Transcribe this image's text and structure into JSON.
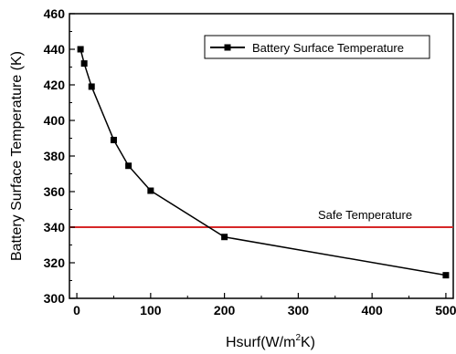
{
  "chart_data": {
    "type": "line",
    "title": "",
    "xlabel": {
      "prefix": "Hsurf(W/m",
      "sup": "2",
      "suffix": "K)"
    },
    "ylabel": "Battery Surface Temperature (K)",
    "xlim": [
      -10,
      510
    ],
    "ylim": [
      300,
      460
    ],
    "xticks": [
      0,
      100,
      200,
      300,
      400,
      500
    ],
    "yticks": [
      300,
      320,
      340,
      360,
      380,
      400,
      420,
      440,
      460
    ],
    "grid": false,
    "legend_position": "top-right",
    "series": [
      {
        "name": "Battery Surface Temperature",
        "color": "#000000",
        "marker": "square",
        "x": [
          5,
          10,
          20,
          50,
          70,
          100,
          200,
          500
        ],
        "y": [
          440,
          432,
          419,
          389,
          374.5,
          360.5,
          334.5,
          313
        ]
      }
    ],
    "reference_lines": [
      {
        "label": "Safe Temperature",
        "y": 340,
        "color": "#d62728"
      }
    ]
  }
}
